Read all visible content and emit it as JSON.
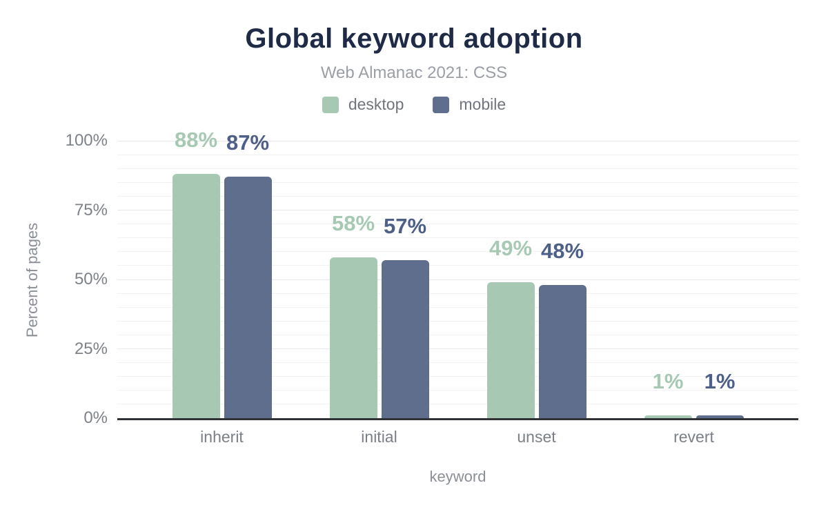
{
  "header": {
    "title": "Global keyword adoption",
    "subtitle": "Web Almanac 2021: CSS"
  },
  "legend": [
    {
      "label": "desktop",
      "color": "#a7c9b4"
    },
    {
      "label": "mobile",
      "color": "#5e6e8c"
    }
  ],
  "chart_data": {
    "type": "bar",
    "title": "Global keyword adoption",
    "subtitle": "Web Almanac 2021: CSS",
    "categories": [
      "inherit",
      "initial",
      "unset",
      "revert"
    ],
    "series": [
      {
        "name": "desktop",
        "color": "#a7c9b4",
        "label_color": "#a7c9b4",
        "values": [
          88,
          58,
          49,
          1
        ]
      },
      {
        "name": "mobile",
        "color": "#5e6e8c",
        "label_color": "#4e6088",
        "values": [
          87,
          57,
          48,
          1
        ]
      }
    ],
    "xlabel": "keyword",
    "ylabel": "Percent of pages",
    "ylim": [
      0,
      100
    ],
    "yticks": [
      0,
      25,
      50,
      75,
      100
    ],
    "ytick_suffix": "%",
    "value_label_suffix": "%",
    "grid": "horizontal minor every 5%, major every 25%",
    "legend_position": "top"
  },
  "colors": {
    "title": "#1e2a46",
    "subtitle": "#9a9ea7",
    "axis_text": "#7d828a",
    "axis_line": "#2f3236",
    "grid_minor": "#f2f2f5",
    "grid_major": "#e7e7ec",
    "background": "#ffffff"
  }
}
